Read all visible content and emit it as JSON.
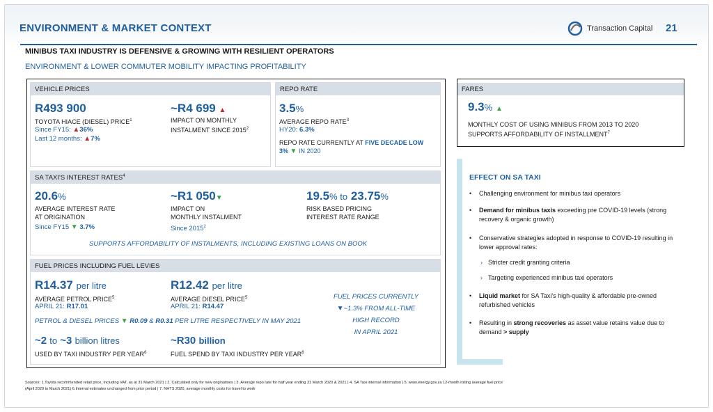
{
  "header": {
    "title": "ENVIRONMENT & MARKET CONTEXT",
    "logo_text": "Transaction Capital",
    "page_number": "21",
    "subtitle": "MINIBUS TAXI INDUSTRY IS DEFENSIVE & GROWING WITH RESILIENT OPERATORS",
    "subtitle2": "ENVIRONMENT & LOWER COMMUTER MOBILITY IMPACTING PROFITABILITY"
  },
  "vehicle_prices": {
    "heading": "VEHICLE PRICES",
    "price": "R493 900",
    "price_label": "TOYOTA HIACE (DIESEL) PRICE",
    "price_sup": "1",
    "since_label": "Since FY15:",
    "since_value": "36%",
    "last12_label": "Last 12 months:",
    "last12_value": "7%",
    "instalment": "~R4 699",
    "instalment_label_1": "IMPACT ON MONTHLY",
    "instalment_label_2": "INSTALMENT SINCE 2015",
    "instalment_sup": "2"
  },
  "repo_rate": {
    "heading": "REPO RATE",
    "value": "3.5",
    "unit": "%",
    "label": "AVERAGE REPO RATE",
    "sup": "3",
    "hy_label": "HY20:",
    "hy_value": "6.3%",
    "note_1": "REPO RATE CURRENTLY AT",
    "note_highlight": "FIVE DECADE LOW",
    "note_2a": "3%",
    "note_2b": "IN 2020"
  },
  "fares": {
    "heading": "FARES",
    "value": "9.3",
    "unit": "%",
    "label_1": "MONTHLY COST OF USING MINIBUS FROM 2013 TO 2020",
    "label_2": "SUPPORTS AFFORDABILITY OF INSTALLMENT",
    "sup": "7"
  },
  "interest": {
    "heading": "SA TAXI'S INTEREST RATES",
    "heading_sup": "4",
    "avg": "20.6",
    "avg_unit": "%",
    "avg_label_1": "AVERAGE INTEREST RATE",
    "avg_label_2": "AT ORIGINATION",
    "avg_since": "Since FY15",
    "avg_since_value": "3.7%",
    "impact": "~R1 050",
    "impact_label_1": "IMPACT ON",
    "impact_label_2": "MONTHLY INSTALMENT",
    "impact_since": "Since 2015",
    "impact_sup": "2",
    "range_low": "19.5",
    "range_to": "% to",
    "range_high": "23.75",
    "range_unit": "%",
    "range_label_1": "RISK BASED PRICING",
    "range_label_2": "INTEREST RATE RANGE",
    "note": "SUPPORTS AFFORDABILITY OF INSTALMENTS, INCLUDING EXISTING LOANS ON BOOK"
  },
  "fuel": {
    "heading": "FUEL PRICES INCLUDING FUEL LEVIES",
    "petrol": "R14.37",
    "petrol_unit": "per litre",
    "petrol_label": "AVERAGE PETROL PRICE",
    "petrol_sup": "5",
    "petrol_april": "APRIL 21:",
    "petrol_april_value": "R17.01",
    "diesel": "R12.42",
    "diesel_unit": "per litre",
    "diesel_label": "AVERAGE DIESEL PRICE",
    "diesel_sup": "5",
    "diesel_april": "APRIL 21:",
    "diesel_april_value": "R14.47",
    "current_1": "FUEL PRICES CURRENTLY",
    "current_2": "~1.3% FROM ALL-TIME",
    "current_3": "HIGH RECORD",
    "current_4": "IN APRIL 2021",
    "change_note_1": "PETROL & DIESEL PRICES",
    "change_note_2": "R0.09",
    "change_note_3": "&",
    "change_note_4": "R0.31",
    "change_note_5": "PER LITRE RESPECTIVELY IN MAY 2021",
    "volume_a": "~2",
    "volume_to": "to",
    "volume_b": "~3",
    "volume_unit": "billion litres",
    "volume_label": "USED BY TAXI INDUSTRY PER YEAR",
    "volume_sup": "6",
    "spend": "~R30",
    "spend_unit": "billion",
    "spend_label": "FUEL SPEND BY TAXI INDUSTRY PER YEAR",
    "spend_sup": "6"
  },
  "effect": {
    "title": "EFFECT ON SA TAXI",
    "b1": "Challenging environment for minibus taxi operators",
    "b2_bold": "Demand for minibus taxis",
    "b2_rest": " exceeding pre COVID-19 levels (strong recovery & organic growth)",
    "b3": "Conservative strategies adopted in response to COVID-19 resulting in lower approval rates:",
    "s1": "Stricter credit granting criteria",
    "s2": "Targeting experienced minibus taxi operators",
    "b4_bold": "Liquid market",
    "b4_rest": " for SA Taxi's high-quality & affordable pre-owned refurbished vehicles",
    "b5_pre": "Resulting in ",
    "b5_bold": "strong recoveries",
    "b5_mid": " as asset value retains value due to demand ",
    "b5_bold2": "> supply"
  },
  "footer": {
    "line1": "Sources: 1.Toyota recommended retail price, including VAT, as at 31 March 2021 | 2. Calculated only for new originations | 3. Average repo rate for half year ending 31 March 2020 & 2021 | 4. SA Taxi internal information | 5. www.energy.gov.za 12-month rolling average fuel price",
    "line2": "(April 2020 to March 2021) 6.Internal estimates unchanged from prior period | 7. NHTS 2020, average monthly costs for travel to work"
  },
  "colors": {
    "accent": "#1f5fa0",
    "up": "#c0282d",
    "down": "#3aa04a",
    "panel_header": "#d8dee6"
  },
  "icons": {
    "up": "up-triangle",
    "down": "down-triangle",
    "chevron": "chevron-right"
  }
}
